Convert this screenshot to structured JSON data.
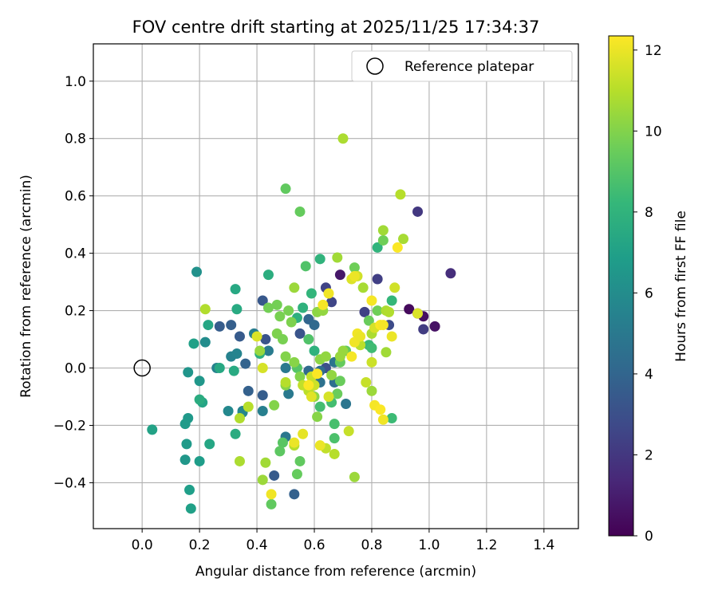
{
  "chart_data": {
    "type": "scatter",
    "title": "FOV centre drift starting at 2025/11/25 17:34:37",
    "xlabel": "Angular distance from reference (arcmin)",
    "ylabel": "Rotation from reference (arcmin)",
    "xlim": [
      -0.17,
      1.52
    ],
    "ylim": [
      -0.56,
      1.13
    ],
    "xticks": [
      0.0,
      0.2,
      0.4,
      0.6,
      0.8,
      1.0,
      1.2,
      1.4
    ],
    "yticks": [
      -0.4,
      -0.2,
      0.0,
      0.2,
      0.4,
      0.6,
      0.8,
      1.0
    ],
    "xtick_labels": [
      "0.0",
      "0.2",
      "0.4",
      "0.6",
      "0.8",
      "1.0",
      "1.2",
      "1.4"
    ],
    "ytick_labels": [
      "−0.4",
      "−0.2",
      "0.0",
      "0.2",
      "0.4",
      "0.6",
      "0.8",
      "1.0"
    ],
    "grid": true,
    "legend": {
      "position": "top-right",
      "entries": [
        "Reference platepar"
      ]
    },
    "reference_point": {
      "x": 0.0,
      "y": 0.0,
      "label": "Reference platepar"
    },
    "colorbar": {
      "label": "Hours from first FF file",
      "range": [
        0,
        12.35
      ],
      "ticks": [
        0,
        2,
        4,
        6,
        8,
        10,
        12
      ],
      "tick_labels": [
        "0",
        "2",
        "4",
        "6",
        "8",
        "10",
        "12"
      ],
      "colormap": "viridis"
    },
    "points": [
      [
        0.93,
        0.205,
        0.3
      ],
      [
        0.98,
        0.18,
        0.5
      ],
      [
        1.02,
        0.145,
        0.6
      ],
      [
        0.69,
        0.325,
        0.8
      ],
      [
        0.96,
        0.19,
        1.0
      ],
      [
        1.075,
        0.33,
        1.6
      ],
      [
        0.96,
        0.545,
        2.0
      ],
      [
        0.98,
        0.135,
        2.2
      ],
      [
        0.82,
        0.31,
        2.3
      ],
      [
        0.775,
        0.195,
        2.4
      ],
      [
        0.64,
        0.28,
        2.5
      ],
      [
        0.66,
        0.23,
        2.6
      ],
      [
        0.86,
        0.15,
        2.8
      ],
      [
        0.64,
        0.0,
        3.0
      ],
      [
        0.55,
        0.12,
        3.2
      ],
      [
        0.43,
        0.1,
        3.2
      ],
      [
        0.42,
        0.235,
        3.4
      ],
      [
        0.34,
        0.11,
        3.5
      ],
      [
        0.27,
        0.145,
        3.6
      ],
      [
        0.31,
        0.15,
        3.7
      ],
      [
        0.37,
        -0.08,
        3.8
      ],
      [
        0.36,
        0.015,
        3.9
      ],
      [
        0.42,
        -0.095,
        3.6
      ],
      [
        0.46,
        -0.375,
        3.5
      ],
      [
        0.53,
        -0.44,
        3.8
      ],
      [
        0.58,
        0.17,
        4.0
      ],
      [
        0.6,
        0.15,
        4.2
      ],
      [
        0.58,
        -0.01,
        4.2
      ],
      [
        0.62,
        -0.01,
        4.4
      ],
      [
        0.67,
        -0.05,
        4.5
      ],
      [
        0.62,
        -0.05,
        4.6
      ],
      [
        0.67,
        0.02,
        4.7
      ],
      [
        0.71,
        -0.125,
        4.8
      ],
      [
        0.5,
        -0.24,
        4.9
      ],
      [
        0.51,
        -0.09,
        5.0
      ],
      [
        0.5,
        0.0,
        5.0
      ],
      [
        0.44,
        0.06,
        5.1
      ],
      [
        0.39,
        0.12,
        5.2
      ],
      [
        0.42,
        -0.15,
        5.3
      ],
      [
        0.35,
        -0.15,
        5.4
      ],
      [
        0.31,
        0.04,
        5.5
      ],
      [
        0.26,
        0.0,
        5.5
      ],
      [
        0.33,
        0.05,
        5.6
      ],
      [
        0.35,
        -0.155,
        5.7
      ],
      [
        0.3,
        -0.15,
        5.8
      ],
      [
        0.22,
        0.09,
        6.0
      ],
      [
        0.19,
        0.335,
        6.2
      ],
      [
        0.16,
        -0.015,
        6.4
      ],
      [
        0.2,
        -0.045,
        6.5
      ],
      [
        0.15,
        -0.32,
        6.5
      ],
      [
        0.16,
        -0.175,
        6.6
      ],
      [
        0.155,
        -0.265,
        6.7
      ],
      [
        0.15,
        -0.195,
        6.7
      ],
      [
        0.2,
        -0.325,
        6.8
      ],
      [
        0.165,
        -0.425,
        6.9
      ],
      [
        0.17,
        -0.49,
        7.0
      ],
      [
        0.18,
        0.085,
        7.0
      ],
      [
        0.035,
        -0.215,
        7.1
      ],
      [
        0.21,
        -0.12,
        7.2
      ],
      [
        0.235,
        -0.265,
        7.3
      ],
      [
        0.23,
        0.15,
        7.3
      ],
      [
        0.27,
        0.0,
        7.4
      ],
      [
        0.325,
        0.275,
        7.4
      ],
      [
        0.33,
        0.205,
        7.5
      ],
      [
        0.32,
        -0.01,
        7.5
      ],
      [
        0.2,
        -0.11,
        7.6
      ],
      [
        0.325,
        -0.23,
        7.6
      ],
      [
        0.44,
        0.325,
        7.7
      ],
      [
        0.41,
        0.05,
        7.8
      ],
      [
        0.54,
        0.175,
        7.8
      ],
      [
        0.56,
        0.21,
        7.9
      ],
      [
        0.6,
        0.06,
        7.9
      ],
      [
        0.62,
        0.38,
        8.0
      ],
      [
        0.59,
        0.26,
        8.1
      ],
      [
        0.82,
        0.42,
        8.0
      ],
      [
        0.87,
        0.235,
        8.2
      ],
      [
        0.79,
        0.08,
        8.3
      ],
      [
        0.87,
        -0.175,
        8.4
      ],
      [
        0.8,
        0.07,
        8.5
      ],
      [
        0.66,
        -0.12,
        8.6
      ],
      [
        0.62,
        -0.135,
        8.6
      ],
      [
        0.67,
        -0.195,
        8.7
      ],
      [
        0.67,
        -0.245,
        8.8
      ],
      [
        0.57,
        0.355,
        8.9
      ],
      [
        0.58,
        0.1,
        8.9
      ],
      [
        0.54,
        0.0,
        9.0
      ],
      [
        0.49,
        -0.26,
        9.1
      ],
      [
        0.48,
        -0.29,
        9.2
      ],
      [
        0.45,
        -0.475,
        9.3
      ],
      [
        0.55,
        -0.325,
        9.3
      ],
      [
        0.54,
        -0.37,
        9.4
      ],
      [
        0.5,
        0.625,
        9.3
      ],
      [
        0.55,
        0.545,
        9.4
      ],
      [
        0.71,
        0.06,
        9.3
      ],
      [
        0.69,
        0.02,
        9.4
      ],
      [
        0.69,
        -0.045,
        9.5
      ],
      [
        0.68,
        -0.09,
        9.5
      ],
      [
        0.79,
        0.165,
        9.5
      ],
      [
        0.74,
        0.35,
        9.6
      ],
      [
        0.84,
        0.445,
        9.6
      ],
      [
        0.82,
        0.2,
        9.6
      ],
      [
        0.44,
        0.21,
        9.7
      ],
      [
        0.47,
        0.22,
        9.7
      ],
      [
        0.48,
        0.18,
        9.8
      ],
      [
        0.51,
        0.2,
        9.8
      ],
      [
        0.47,
        0.12,
        9.9
      ],
      [
        0.49,
        0.1,
        9.8
      ],
      [
        0.52,
        0.16,
        9.9
      ],
      [
        0.5,
        0.04,
        10.0
      ],
      [
        0.55,
        -0.03,
        10.0
      ],
      [
        0.53,
        0.02,
        10.1
      ],
      [
        0.46,
        -0.13,
        10.0
      ],
      [
        0.5,
        -0.06,
        10.1
      ],
      [
        0.6,
        -0.1,
        10.2
      ],
      [
        0.61,
        -0.17,
        10.1
      ],
      [
        0.62,
        0.03,
        10.2
      ],
      [
        0.66,
        -0.025,
        10.3
      ],
      [
        0.64,
        0.04,
        10.3
      ],
      [
        0.61,
        0.195,
        10.2
      ],
      [
        0.63,
        0.2,
        10.3
      ],
      [
        0.69,
        0.04,
        10.4
      ],
      [
        0.7,
        0.06,
        10.4
      ],
      [
        0.74,
        -0.38,
        10.5
      ],
      [
        0.8,
        -0.08,
        10.5
      ],
      [
        0.85,
        0.055,
        10.6
      ],
      [
        0.84,
        0.48,
        10.6
      ],
      [
        0.91,
        0.45,
        10.7
      ],
      [
        0.77,
        0.28,
        10.7
      ],
      [
        0.8,
        0.12,
        10.8
      ],
      [
        0.85,
        0.2,
        10.8
      ],
      [
        0.53,
        0.28,
        10.5
      ],
      [
        0.68,
        0.385,
        10.6
      ],
      [
        0.7,
        0.8,
        10.8
      ],
      [
        0.86,
        0.195,
        10.9
      ],
      [
        0.9,
        0.605,
        11.0
      ],
      [
        0.41,
        0.06,
        10.4
      ],
      [
        0.43,
        -0.33,
        10.6
      ],
      [
        0.42,
        -0.39,
        10.5
      ],
      [
        0.34,
        -0.325,
        10.8
      ],
      [
        0.34,
        -0.175,
        10.9
      ],
      [
        0.37,
        -0.135,
        11.0
      ],
      [
        0.22,
        0.205,
        10.9
      ],
      [
        0.5,
        -0.05,
        11.0
      ],
      [
        0.53,
        -0.27,
        11.0
      ],
      [
        0.58,
        -0.08,
        11.1
      ],
      [
        0.56,
        -0.06,
        11.2
      ],
      [
        0.59,
        -0.03,
        11.3
      ],
      [
        0.6,
        -0.06,
        11.4
      ],
      [
        0.64,
        -0.28,
        11.2
      ],
      [
        0.67,
        -0.3,
        11.0
      ],
      [
        0.72,
        -0.22,
        11.3
      ],
      [
        0.76,
        0.08,
        11.1
      ],
      [
        0.78,
        -0.05,
        11.3
      ],
      [
        0.8,
        0.02,
        11.4
      ],
      [
        0.81,
        0.14,
        11.6
      ],
      [
        0.75,
        0.32,
        11.5
      ],
      [
        0.73,
        0.31,
        11.7
      ],
      [
        0.88,
        0.28,
        11.5
      ],
      [
        0.96,
        0.19,
        11.7
      ],
      [
        0.65,
        -0.1,
        11.6
      ],
      [
        0.42,
        0.0,
        11.6
      ],
      [
        0.4,
        0.11,
        11.7
      ],
      [
        0.59,
        -0.1,
        11.8
      ],
      [
        0.56,
        -0.23,
        11.9
      ],
      [
        0.53,
        -0.26,
        12.0
      ],
      [
        0.62,
        -0.27,
        12.0
      ],
      [
        0.45,
        -0.44,
        12.1
      ],
      [
        0.74,
        0.32,
        12.0
      ],
      [
        0.74,
        0.09,
        12.1
      ],
      [
        0.73,
        0.04,
        12.2
      ],
      [
        0.75,
        0.12,
        12.1
      ],
      [
        0.76,
        0.11,
        12.0
      ],
      [
        0.8,
        0.235,
        12.2
      ],
      [
        0.83,
        0.15,
        12.3
      ],
      [
        0.84,
        0.15,
        12.2
      ],
      [
        0.87,
        0.11,
        12.0
      ],
      [
        0.89,
        0.42,
        12.3
      ],
      [
        0.81,
        -0.13,
        12.2
      ],
      [
        0.83,
        -0.145,
        12.3
      ],
      [
        0.84,
        -0.18,
        12.1
      ],
      [
        0.65,
        0.26,
        12.1
      ],
      [
        0.63,
        0.22,
        12.2
      ],
      [
        0.61,
        -0.02,
        12.3
      ],
      [
        0.58,
        -0.06,
        12.3
      ]
    ]
  }
}
